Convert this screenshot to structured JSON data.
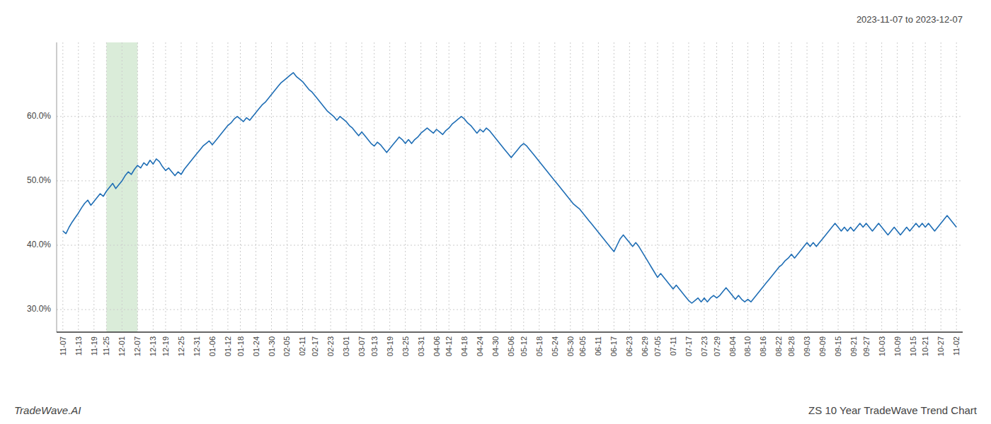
{
  "chart_data": {
    "type": "line",
    "subtitle": "2023-11-07 to 2023-12-07",
    "annotations": [
      "TradeWave.AI",
      "ZS 10 Year TradeWave Trend Chart"
    ],
    "color": "#1f6eb5",
    "highlight": {
      "from": "11-25",
      "to": "12-07",
      "color": "#daecd9"
    },
    "grid": true,
    "ylim": [
      0.265,
      0.715
    ],
    "yticks": [
      {
        "value": 0.3,
        "label": "30.0%"
      },
      {
        "value": 0.4,
        "label": "40.0%"
      },
      {
        "value": 0.5,
        "label": "50.0%"
      },
      {
        "value": 0.6,
        "label": "60.0%"
      }
    ],
    "categories": [
      "11-07",
      null,
      null,
      null,
      null,
      "11-13",
      null,
      null,
      null,
      null,
      "11-19",
      null,
      null,
      null,
      "11-25",
      null,
      null,
      null,
      null,
      "12-01",
      null,
      null,
      null,
      null,
      "12-07",
      null,
      null,
      null,
      null,
      "12-13",
      null,
      null,
      null,
      "12-19",
      null,
      null,
      null,
      null,
      "12-25",
      null,
      null,
      null,
      null,
      "12-31",
      null,
      null,
      null,
      null,
      "01-06",
      null,
      null,
      null,
      null,
      "01-12",
      null,
      null,
      null,
      "01-18",
      null,
      null,
      null,
      null,
      "01-24",
      null,
      null,
      null,
      null,
      "01-30",
      null,
      null,
      null,
      null,
      "02-05",
      null,
      null,
      null,
      null,
      "02-11",
      null,
      null,
      null,
      "02-17",
      null,
      null,
      null,
      null,
      "02-23",
      null,
      null,
      null,
      null,
      "03-01",
      null,
      null,
      null,
      null,
      "03-07",
      null,
      null,
      null,
      "03-13",
      null,
      null,
      null,
      null,
      "03-19",
      null,
      null,
      null,
      null,
      "03-25",
      null,
      null,
      null,
      null,
      "03-31",
      null,
      null,
      null,
      null,
      "04-06",
      null,
      null,
      null,
      "04-12",
      null,
      null,
      null,
      null,
      "04-18",
      null,
      null,
      null,
      null,
      "04-24",
      null,
      null,
      null,
      null,
      "04-30",
      null,
      null,
      null,
      null,
      "05-06",
      null,
      null,
      null,
      "05-12",
      null,
      null,
      null,
      null,
      "05-18",
      null,
      null,
      null,
      null,
      "05-24",
      null,
      null,
      null,
      null,
      "05-30",
      null,
      null,
      null,
      "06-05",
      null,
      null,
      null,
      null,
      "06-11",
      null,
      null,
      null,
      null,
      "06-17",
      null,
      null,
      null,
      null,
      "06-23",
      null,
      null,
      null,
      null,
      "06-29",
      null,
      null,
      null,
      "07-05",
      null,
      null,
      null,
      null,
      "07-11",
      null,
      null,
      null,
      null,
      "07-17",
      null,
      null,
      null,
      null,
      "07-23",
      null,
      null,
      null,
      "07-29",
      null,
      null,
      null,
      null,
      "08-04",
      null,
      null,
      null,
      null,
      "08-10",
      null,
      null,
      null,
      null,
      "08-16",
      null,
      null,
      null,
      null,
      "08-22",
      null,
      null,
      null,
      "08-28",
      null,
      null,
      null,
      null,
      "09-03",
      null,
      null,
      null,
      null,
      "09-09",
      null,
      null,
      null,
      null,
      "09-15",
      null,
      null,
      null,
      null,
      "09-21",
      null,
      null,
      null,
      "09-27",
      null,
      null,
      null,
      null,
      "10-03",
      null,
      null,
      null,
      null,
      "10-09",
      null,
      null,
      null,
      null,
      "10-15",
      null,
      null,
      null,
      "10-21",
      null,
      null,
      null,
      null,
      "10-27",
      null,
      null,
      null,
      null,
      "11-02"
    ],
    "values": [
      0.422,
      0.418,
      0.428,
      0.436,
      0.443,
      0.45,
      0.458,
      0.465,
      0.47,
      0.462,
      0.468,
      0.474,
      0.48,
      0.476,
      0.484,
      0.49,
      0.496,
      0.488,
      0.494,
      0.5,
      0.508,
      0.514,
      0.51,
      0.518,
      0.524,
      0.52,
      0.528,
      0.524,
      0.532,
      0.526,
      0.534,
      0.53,
      0.522,
      0.516,
      0.52,
      0.514,
      0.508,
      0.514,
      0.51,
      0.518,
      0.524,
      0.53,
      0.536,
      0.542,
      0.548,
      0.554,
      0.558,
      0.562,
      0.556,
      0.562,
      0.568,
      0.574,
      0.58,
      0.586,
      0.59,
      0.596,
      0.6,
      0.596,
      0.592,
      0.598,
      0.594,
      0.6,
      0.606,
      0.612,
      0.618,
      0.622,
      0.628,
      0.634,
      0.64,
      0.646,
      0.652,
      0.656,
      0.66,
      0.664,
      0.668,
      0.662,
      0.658,
      0.654,
      0.648,
      0.642,
      0.638,
      0.632,
      0.626,
      0.62,
      0.614,
      0.608,
      0.604,
      0.6,
      0.594,
      0.6,
      0.596,
      0.592,
      0.586,
      0.582,
      0.576,
      0.57,
      0.576,
      0.57,
      0.564,
      0.558,
      0.554,
      0.56,
      0.556,
      0.55,
      0.544,
      0.55,
      0.556,
      0.562,
      0.568,
      0.564,
      0.558,
      0.564,
      0.558,
      0.564,
      0.568,
      0.574,
      0.578,
      0.582,
      0.578,
      0.574,
      0.58,
      0.576,
      0.572,
      0.578,
      0.582,
      0.588,
      0.592,
      0.596,
      0.6,
      0.596,
      0.59,
      0.586,
      0.58,
      0.574,
      0.58,
      0.576,
      0.582,
      0.578,
      0.572,
      0.566,
      0.56,
      0.554,
      0.548,
      0.542,
      0.536,
      0.542,
      0.548,
      0.554,
      0.558,
      0.554,
      0.548,
      0.542,
      0.536,
      0.53,
      0.524,
      0.518,
      0.512,
      0.506,
      0.5,
      0.494,
      0.488,
      0.482,
      0.476,
      0.47,
      0.464,
      0.46,
      0.456,
      0.45,
      0.444,
      0.438,
      0.432,
      0.426,
      0.42,
      0.414,
      0.408,
      0.402,
      0.396,
      0.39,
      0.4,
      0.41,
      0.416,
      0.41,
      0.404,
      0.398,
      0.404,
      0.398,
      0.39,
      0.382,
      0.374,
      0.366,
      0.358,
      0.35,
      0.356,
      0.35,
      0.344,
      0.338,
      0.332,
      0.338,
      0.332,
      0.326,
      0.32,
      0.314,
      0.31,
      0.314,
      0.318,
      0.312,
      0.318,
      0.312,
      0.318,
      0.322,
      0.318,
      0.322,
      0.328,
      0.334,
      0.328,
      0.322,
      0.316,
      0.322,
      0.316,
      0.312,
      0.316,
      0.312,
      0.318,
      0.324,
      0.33,
      0.336,
      0.342,
      0.348,
      0.354,
      0.36,
      0.366,
      0.37,
      0.376,
      0.38,
      0.386,
      0.38,
      0.386,
      0.392,
      0.398,
      0.404,
      0.398,
      0.404,
      0.398,
      0.404,
      0.41,
      0.416,
      0.422,
      0.428,
      0.434,
      0.428,
      0.422,
      0.428,
      0.422,
      0.428,
      0.422,
      0.428,
      0.434,
      0.428,
      0.434,
      0.428,
      0.422,
      0.428,
      0.434,
      0.428,
      0.422,
      0.416,
      0.422,
      0.428,
      0.422,
      0.416,
      0.422,
      0.428,
      0.422,
      0.428,
      0.434,
      0.428,
      0.434,
      0.428,
      0.434,
      0.428,
      0.422,
      0.428,
      0.434,
      0.44,
      0.446,
      0.44,
      0.434,
      0.428
    ]
  }
}
